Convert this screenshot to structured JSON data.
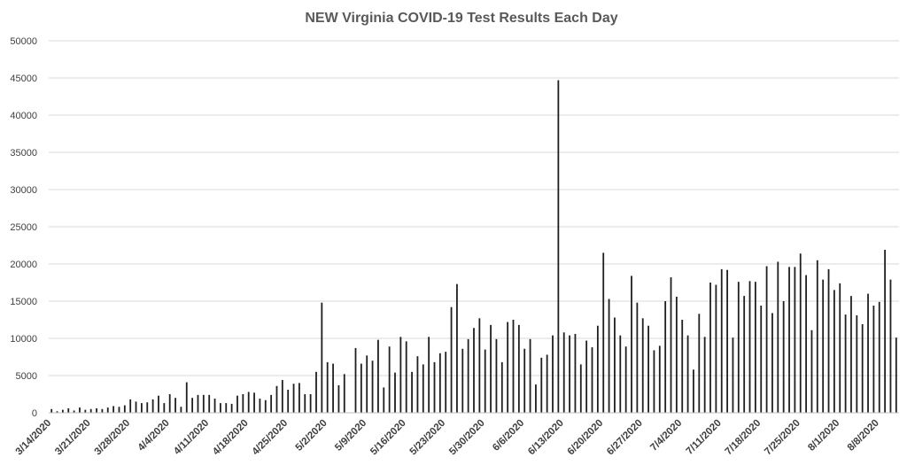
{
  "chart_data": {
    "type": "bar",
    "title": "NEW Virginia COVID-19 Test Results Each Day",
    "xlabel": "",
    "ylabel": "",
    "ylim": [
      0,
      50000
    ],
    "yticks": [
      0,
      5000,
      10000,
      15000,
      20000,
      25000,
      30000,
      35000,
      40000,
      45000,
      50000
    ],
    "grid": true,
    "legend": "none",
    "bar_color": "#1f1f1f",
    "start_date": "3/14/2020",
    "end_date": "8/11/2020",
    "xtick_labels": [
      "3/14/2020",
      "3/21/2020",
      "3/28/2020",
      "4/4/2020",
      "4/11/2020",
      "4/18/2020",
      "4/25/2020",
      "5/2/2020",
      "5/9/2020",
      "5/16/2020",
      "5/23/2020",
      "5/30/2020",
      "6/6/2020",
      "6/13/2020",
      "6/20/2020",
      "6/27/2020",
      "7/4/2020",
      "7/11/2020",
      "7/18/2020",
      "7/25/2020",
      "8/1/2020",
      "8/8/2020"
    ],
    "values": [
      500,
      200,
      400,
      600,
      300,
      700,
      400,
      500,
      600,
      500,
      700,
      900,
      800,
      1000,
      1800,
      1500,
      1300,
      1400,
      1800,
      2300,
      1300,
      2500,
      2000,
      800,
      4100,
      2000,
      2400,
      2400,
      2400,
      1900,
      1300,
      1300,
      1200,
      2300,
      2500,
      2800,
      2700,
      1900,
      1700,
      2400,
      3600,
      4400,
      3100,
      3900,
      4000,
      2500,
      2500,
      5500,
      14800,
      6800,
      6600,
      3700,
      5200,
      0,
      8700,
      6600,
      7700,
      7000,
      9800,
      3400,
      8900,
      5400,
      10200,
      9600,
      5500,
      7600,
      6500,
      10200,
      6800,
      8000,
      8200,
      14200,
      17300,
      8600,
      9900,
      11400,
      12700,
      8500,
      11800,
      9900,
      6800,
      12200,
      12500,
      11800,
      8600,
      9900,
      3800,
      7400,
      7800,
      10400,
      44700,
      10800,
      10400,
      10600,
      6500,
      9700,
      8800,
      11700,
      21500,
      15300,
      12800,
      10400,
      8900,
      18400,
      14800,
      12700,
      11700,
      8400,
      9000,
      15000,
      18200,
      15600,
      12500,
      10400,
      5800,
      13300,
      10200,
      17500,
      17200,
      19300,
      19200,
      10100,
      17600,
      15700,
      17700,
      17600,
      14400,
      19700,
      13400,
      20300,
      15000,
      19600,
      19600,
      21400,
      18500,
      11100,
      20500,
      17900,
      19300,
      16500,
      17400,
      13200,
      15700,
      13100,
      11900,
      16000,
      14400,
      14900,
      21900,
      17900,
      10100
    ]
  }
}
